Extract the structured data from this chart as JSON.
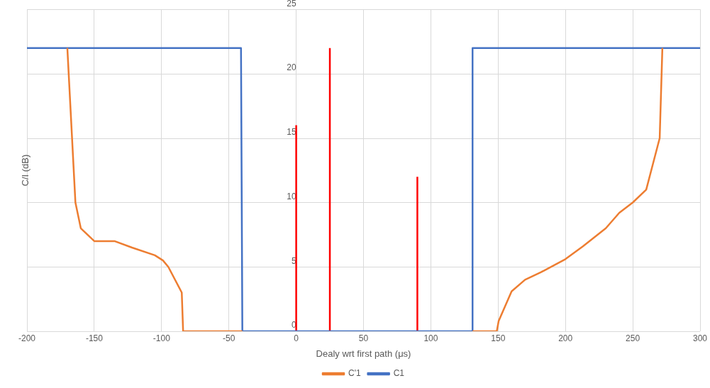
{
  "chart_data": {
    "type": "line",
    "xlabel": "Dealy wrt first path (μs)",
    "ylabel": "C/I (dB)",
    "xlim": [
      -200,
      300
    ],
    "xticks": [
      -200,
      -150,
      -100,
      -50,
      0,
      50,
      100,
      150,
      200,
      250,
      300
    ],
    "ylim": [
      0,
      25
    ],
    "yticks": [
      0,
      5,
      10,
      15,
      20,
      25
    ],
    "grid": true,
    "legend": "bottom",
    "marker": "none",
    "line_style": "solid",
    "series": [
      {
        "name": "C'1",
        "color": "#ed7d31",
        "x": [
          -170,
          -164,
          -160,
          -150,
          -135,
          -122,
          -105,
          -99,
          -95,
          -85,
          -84,
          -40,
          null,
          131,
          149,
          150.4,
          160,
          170,
          184,
          200,
          213,
          230,
          240,
          250,
          260,
          270,
          272
        ],
        "values": [
          22,
          10,
          8,
          7,
          7,
          6.5,
          5.9,
          5.5,
          5,
          3,
          0,
          0,
          null,
          0,
          0,
          0.8,
          3.1,
          4,
          4.7,
          5.6,
          6.6,
          8,
          9.2,
          10,
          11,
          15,
          22
        ]
      },
      {
        "name": "C1",
        "color": "#4472c4",
        "x": [
          -200,
          -41,
          -40,
          131,
          131,
          300
        ],
        "values": [
          22,
          22,
          0,
          0,
          22,
          22
        ]
      },
      {
        "color": "#ff0000",
        "x": [
          0,
          0
        ],
        "values": [
          0,
          16
        ]
      },
      {
        "color": "#ff0000",
        "x": [
          25,
          25
        ],
        "values": [
          0,
          22
        ]
      },
      {
        "color": "#ff0000",
        "x": [
          90,
          90
        ],
        "values": [
          0,
          12
        ]
      }
    ]
  }
}
